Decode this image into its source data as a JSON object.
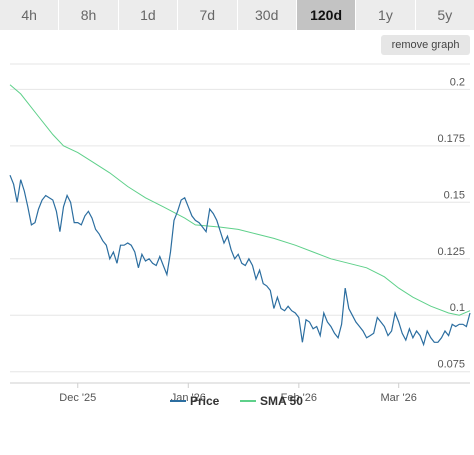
{
  "tabs": [
    {
      "label": "4h",
      "active": false
    },
    {
      "label": "8h",
      "active": false
    },
    {
      "label": "1d",
      "active": false
    },
    {
      "label": "7d",
      "active": false
    },
    {
      "label": "30d",
      "active": false
    },
    {
      "label": "120d",
      "active": true
    },
    {
      "label": "1y",
      "active": false
    },
    {
      "label": "5y",
      "active": false
    }
  ],
  "remove_graph_label": "remove graph",
  "colors": {
    "price": "#2c6ea0",
    "sma": "#5ed08a",
    "grid": "#e6e6e6",
    "tab_bg": "#ececec",
    "tab_active_bg": "#c3c3c3"
  },
  "chart_data": {
    "type": "line",
    "ylim": [
      0.07,
      0.213
    ],
    "y_ticks": [
      0.075,
      0.1,
      0.125,
      0.15,
      0.175,
      0.2
    ],
    "y_tick_labels": [
      "0.075",
      "0.1",
      "0.125",
      "0.15",
      "0.175",
      "0.2"
    ],
    "x_ticks": [
      {
        "date": "2025-12-01",
        "label": "Dec '25"
      },
      {
        "date": "2026-01-01",
        "label": "Jan '26"
      },
      {
        "date": "2026-02-01",
        "label": "Feb '26"
      },
      {
        "date": "2026-03-01",
        "label": "Mar '26"
      }
    ],
    "x_range": [
      "2025-11-12",
      "2026-03-21"
    ],
    "legend": "bottom-center",
    "grid": true,
    "series": [
      {
        "name": "Price",
        "color": "#2c6ea0",
        "points": [
          [
            "2025-11-12",
            0.162
          ],
          [
            "2025-11-13",
            0.158
          ],
          [
            "2025-11-14",
            0.15
          ],
          [
            "2025-11-15",
            0.16
          ],
          [
            "2025-11-16",
            0.155
          ],
          [
            "2025-11-17",
            0.148
          ],
          [
            "2025-11-18",
            0.14
          ],
          [
            "2025-11-19",
            0.141
          ],
          [
            "2025-11-20",
            0.147
          ],
          [
            "2025-11-21",
            0.151
          ],
          [
            "2025-11-22",
            0.153
          ],
          [
            "2025-11-23",
            0.152
          ],
          [
            "2025-11-24",
            0.151
          ],
          [
            "2025-11-25",
            0.146
          ],
          [
            "2025-11-26",
            0.137
          ],
          [
            "2025-11-27",
            0.148
          ],
          [
            "2025-11-28",
            0.153
          ],
          [
            "2025-11-29",
            0.15
          ],
          [
            "2025-11-30",
            0.141
          ],
          [
            "2025-12-01",
            0.141
          ],
          [
            "2025-12-02",
            0.14
          ],
          [
            "2025-12-03",
            0.144
          ],
          [
            "2025-12-04",
            0.146
          ],
          [
            "2025-12-05",
            0.143
          ],
          [
            "2025-12-06",
            0.138
          ],
          [
            "2025-12-07",
            0.136
          ],
          [
            "2025-12-08",
            0.133
          ],
          [
            "2025-12-09",
            0.131
          ],
          [
            "2025-12-10",
            0.125
          ],
          [
            "2025-12-11",
            0.128
          ],
          [
            "2025-12-12",
            0.123
          ],
          [
            "2025-12-13",
            0.131
          ],
          [
            "2025-12-14",
            0.131
          ],
          [
            "2025-12-15",
            0.132
          ],
          [
            "2025-12-16",
            0.131
          ],
          [
            "2025-12-17",
            0.128
          ],
          [
            "2025-12-18",
            0.121
          ],
          [
            "2025-12-19",
            0.127
          ],
          [
            "2025-12-20",
            0.124
          ],
          [
            "2025-12-21",
            0.125
          ],
          [
            "2025-12-22",
            0.123
          ],
          [
            "2025-12-23",
            0.122
          ],
          [
            "2025-12-24",
            0.126
          ],
          [
            "2025-12-25",
            0.122
          ],
          [
            "2025-12-26",
            0.118
          ],
          [
            "2025-12-27",
            0.128
          ],
          [
            "2025-12-28",
            0.142
          ],
          [
            "2025-12-29",
            0.146
          ],
          [
            "2025-12-30",
            0.151
          ],
          [
            "2025-12-31",
            0.152
          ],
          [
            "2026-01-01",
            0.148
          ],
          [
            "2026-01-02",
            0.144
          ],
          [
            "2026-01-03",
            0.142
          ],
          [
            "2026-01-04",
            0.141
          ],
          [
            "2026-01-05",
            0.139
          ],
          [
            "2026-01-06",
            0.137
          ],
          [
            "2026-01-07",
            0.147
          ],
          [
            "2026-01-08",
            0.145
          ],
          [
            "2026-01-09",
            0.142
          ],
          [
            "2026-01-10",
            0.137
          ],
          [
            "2026-01-11",
            0.132
          ],
          [
            "2026-01-12",
            0.135
          ],
          [
            "2026-01-13",
            0.129
          ],
          [
            "2026-01-14",
            0.125
          ],
          [
            "2026-01-15",
            0.127
          ],
          [
            "2026-01-16",
            0.123
          ],
          [
            "2026-01-17",
            0.122
          ],
          [
            "2026-01-18",
            0.125
          ],
          [
            "2026-01-19",
            0.122
          ],
          [
            "2026-01-20",
            0.116
          ],
          [
            "2026-01-21",
            0.12
          ],
          [
            "2026-01-22",
            0.114
          ],
          [
            "2026-01-23",
            0.113
          ],
          [
            "2026-01-24",
            0.111
          ],
          [
            "2026-01-25",
            0.103
          ],
          [
            "2026-01-26",
            0.108
          ],
          [
            "2026-01-27",
            0.103
          ],
          [
            "2026-01-28",
            0.102
          ],
          [
            "2026-01-29",
            0.104
          ],
          [
            "2026-01-30",
            0.102
          ],
          [
            "2026-01-31",
            0.101
          ],
          [
            "2026-02-01",
            0.099
          ],
          [
            "2026-02-02",
            0.088
          ],
          [
            "2026-02-03",
            0.098
          ],
          [
            "2026-02-04",
            0.097
          ],
          [
            "2026-02-05",
            0.094
          ],
          [
            "2026-02-06",
            0.095
          ],
          [
            "2026-02-07",
            0.091
          ],
          [
            "2026-02-08",
            0.101
          ],
          [
            "2026-02-09",
            0.097
          ],
          [
            "2026-02-10",
            0.095
          ],
          [
            "2026-02-11",
            0.092
          ],
          [
            "2026-02-12",
            0.09
          ],
          [
            "2026-02-13",
            0.096
          ],
          [
            "2026-02-14",
            0.112
          ],
          [
            "2026-02-15",
            0.103
          ],
          [
            "2026-02-16",
            0.1
          ],
          [
            "2026-02-17",
            0.097
          ],
          [
            "2026-02-18",
            0.095
          ],
          [
            "2026-02-19",
            0.093
          ],
          [
            "2026-02-20",
            0.09
          ],
          [
            "2026-02-21",
            0.091
          ],
          [
            "2026-02-22",
            0.092
          ],
          [
            "2026-02-23",
            0.099
          ],
          [
            "2026-02-24",
            0.097
          ],
          [
            "2026-02-25",
            0.095
          ],
          [
            "2026-02-26",
            0.091
          ],
          [
            "2026-02-27",
            0.093
          ],
          [
            "2026-02-28",
            0.101
          ],
          [
            "2026-03-01",
            0.097
          ],
          [
            "2026-03-02",
            0.092
          ],
          [
            "2026-03-03",
            0.089
          ],
          [
            "2026-03-04",
            0.094
          ],
          [
            "2026-03-05",
            0.09
          ],
          [
            "2026-03-06",
            0.093
          ],
          [
            "2026-03-07",
            0.091
          ],
          [
            "2026-03-08",
            0.087
          ],
          [
            "2026-03-09",
            0.093
          ],
          [
            "2026-03-10",
            0.09
          ],
          [
            "2026-03-11",
            0.088
          ],
          [
            "2026-03-12",
            0.088
          ],
          [
            "2026-03-13",
            0.09
          ],
          [
            "2026-03-14",
            0.093
          ],
          [
            "2026-03-15",
            0.091
          ],
          [
            "2026-03-16",
            0.096
          ],
          [
            "2026-03-17",
            0.095
          ],
          [
            "2026-03-18",
            0.096
          ],
          [
            "2026-03-19",
            0.096
          ],
          [
            "2026-03-20",
            0.095
          ],
          [
            "2026-03-21",
            0.101
          ]
        ]
      },
      {
        "name": "SMA 50",
        "color": "#5ed08a",
        "points": [
          [
            "2025-11-12",
            0.202
          ],
          [
            "2025-11-15",
            0.198
          ],
          [
            "2025-11-20",
            0.188
          ],
          [
            "2025-11-24",
            0.18
          ],
          [
            "2025-11-27",
            0.175
          ],
          [
            "2025-12-01",
            0.172
          ],
          [
            "2025-12-05",
            0.168
          ],
          [
            "2025-12-10",
            0.163
          ],
          [
            "2025-12-15",
            0.157
          ],
          [
            "2025-12-20",
            0.152
          ],
          [
            "2025-12-25",
            0.148
          ],
          [
            "2025-12-31",
            0.143
          ],
          [
            "2026-01-03",
            0.14
          ],
          [
            "2026-01-10",
            0.139
          ],
          [
            "2026-01-15",
            0.138
          ],
          [
            "2026-01-20",
            0.136
          ],
          [
            "2026-01-25",
            0.134
          ],
          [
            "2026-01-31",
            0.131
          ],
          [
            "2026-02-05",
            0.128
          ],
          [
            "2026-02-10",
            0.125
          ],
          [
            "2026-02-15",
            0.123
          ],
          [
            "2026-02-20",
            0.121
          ],
          [
            "2026-02-25",
            0.117
          ],
          [
            "2026-03-01",
            0.112
          ],
          [
            "2026-03-05",
            0.108
          ],
          [
            "2026-03-10",
            0.104
          ],
          [
            "2026-03-15",
            0.101
          ],
          [
            "2026-03-18",
            0.1
          ],
          [
            "2026-03-21",
            0.102
          ]
        ]
      }
    ]
  }
}
